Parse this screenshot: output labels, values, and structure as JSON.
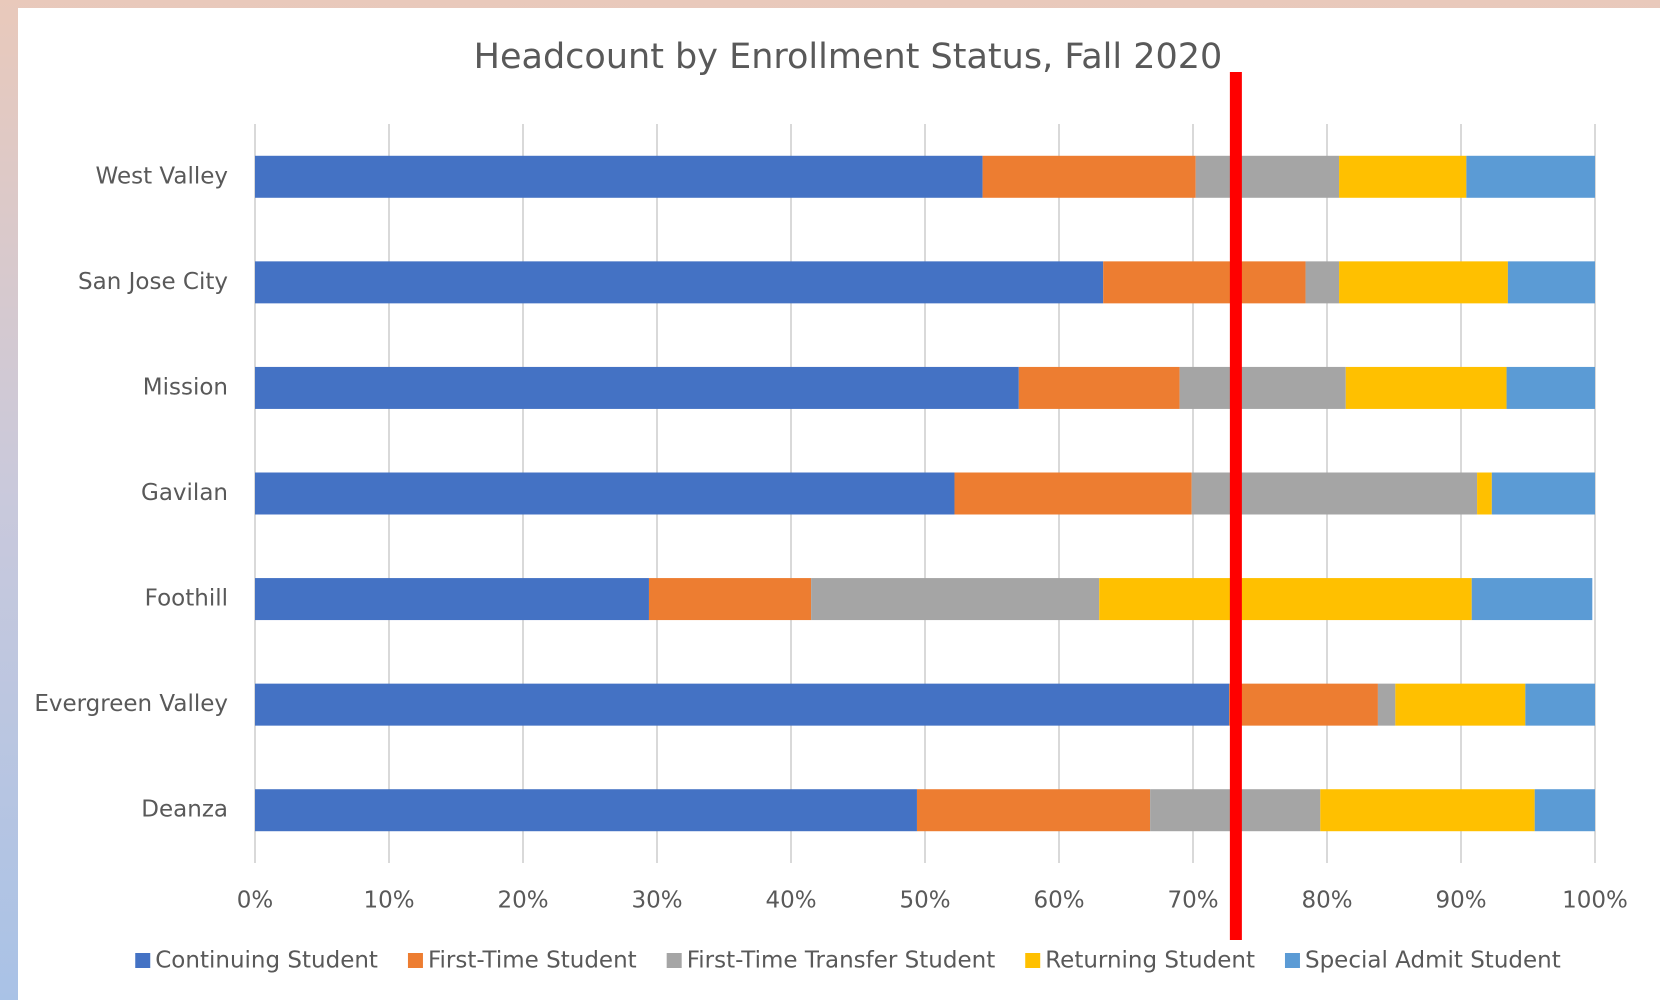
{
  "chart_data": {
    "type": "stacked_barh",
    "title": "Headcount by Enrollment Status, Fall 2020",
    "categories": [
      "West Valley",
      "San Jose City",
      "Mission",
      "Gavilan",
      "Foothill",
      "Evergreen Valley",
      "Deanza"
    ],
    "series": [
      {
        "name": "Continuing Student",
        "color": "#4472c4",
        "values": [
          54.3,
          63.3,
          57.0,
          52.2,
          29.4,
          72.7,
          49.4
        ]
      },
      {
        "name": "First-Time Student",
        "color": "#ed7d31",
        "values": [
          15.9,
          15.1,
          12.0,
          17.7,
          12.1,
          11.1,
          17.4
        ]
      },
      {
        "name": "First-Time Transfer Student",
        "color": "#a5a5a5",
        "values": [
          10.7,
          2.5,
          12.4,
          21.3,
          21.5,
          1.3,
          12.7
        ]
      },
      {
        "name": "Returning Student",
        "color": "#ffc000",
        "values": [
          9.5,
          12.6,
          12.0,
          1.1,
          27.8,
          9.7,
          16.0
        ]
      },
      {
        "name": "Special Admit Student",
        "color": "#5b9bd5",
        "values": [
          9.6,
          6.5,
          6.6,
          7.7,
          9.0,
          5.2,
          4.5
        ]
      }
    ],
    "xlim": [
      0,
      100
    ],
    "xticks": [
      {
        "value": 0,
        "label": "0%"
      },
      {
        "value": 10,
        "label": "10%"
      },
      {
        "value": 20,
        "label": "20%"
      },
      {
        "value": 30,
        "label": "30%"
      },
      {
        "value": 40,
        "label": "40%"
      },
      {
        "value": 50,
        "label": "50%"
      },
      {
        "value": 60,
        "label": "60%"
      },
      {
        "value": 70,
        "label": "70%"
      },
      {
        "value": 80,
        "label": "80%"
      },
      {
        "value": 90,
        "label": "90%"
      },
      {
        "value": 100,
        "label": "100%"
      }
    ],
    "grid": true,
    "legend": "bottom",
    "reference_line": {
      "value": 73.2,
      "color": "#ff0000"
    }
  }
}
